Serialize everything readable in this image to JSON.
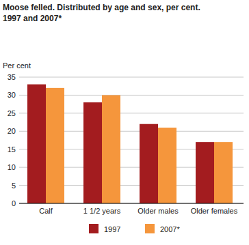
{
  "chart_data": {
    "type": "bar",
    "title": "Moose felled. Distributed by age and sex, per cent.",
    "subtitle": "1997 and 2007*",
    "ylabel": "Per cent",
    "categories": [
      "Calf",
      "1 1/2 years",
      "Older males",
      "Older females"
    ],
    "series": [
      {
        "name": "1997",
        "color": "#a31c1f",
        "values": [
          33,
          28,
          22,
          17
        ]
      },
      {
        "name": "2007*",
        "color": "#f5963c",
        "values": [
          32,
          30,
          21,
          17
        ]
      }
    ],
    "ylim": [
      0,
      35
    ],
    "yticks": [
      0,
      5,
      10,
      15,
      20,
      25,
      30,
      35
    ],
    "grid": true,
    "legend": "bottom"
  }
}
